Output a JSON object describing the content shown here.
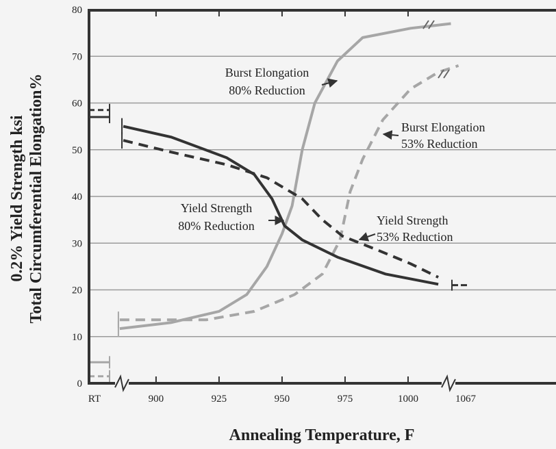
{
  "chart_data": {
    "type": "line",
    "xlabel": "Annealing Temperature, F",
    "ylabel_lines": [
      "0.2% Yield Strength ksi",
      "Total Circumferential Elongation%"
    ],
    "xlim": [
      873.4,
      1058.7
    ],
    "xticks": [
      900,
      925,
      950,
      975,
      1000
    ],
    "x_end_labels": [
      "RT",
      "1067"
    ],
    "ylim": [
      0,
      80
    ],
    "yticks": [
      0,
      10,
      20,
      30,
      40,
      50,
      60,
      70,
      80
    ],
    "grid": true,
    "series": [
      {
        "label_lines": [
          "Burst Elongation",
          "80% Reduction"
        ],
        "color": "#a6a6a6",
        "dash": false,
        "x": [
          885.6,
          906,
          925,
          936,
          944,
          950,
          954,
          958,
          963,
          972,
          982,
          1001,
          1017
        ],
        "values": [
          11.7,
          13,
          15.4,
          19,
          25,
          32,
          38,
          50,
          60,
          69,
          74,
          76,
          77
        ],
        "rt_value": 4.5
      },
      {
        "label_lines": [
          "Burst Elongation",
          "53% Reduction"
        ],
        "color": "#a6a6a6",
        "dash": true,
        "x": [
          885.6,
          920,
          939,
          955,
          966,
          973,
          977,
          982,
          990,
          1001,
          1012,
          1020
        ],
        "values": [
          13.6,
          13.6,
          15.4,
          19,
          23.4,
          30.7,
          41,
          48,
          56.4,
          63,
          66.6,
          68
        ],
        "rt_value": 1.5
      },
      {
        "label_lines": [
          "Yield Strength",
          "80% Reduction"
        ],
        "color": "#333333",
        "dash": false,
        "x": [
          887,
          906,
          928,
          939,
          946,
          951,
          958,
          972,
          991,
          1012
        ],
        "values": [
          55,
          52.7,
          48.3,
          44.7,
          39.5,
          33.7,
          30.7,
          27,
          23.4,
          21.2
        ],
        "rt_value": 57
      },
      {
        "label_lines": [
          "Yield Strength",
          "53% Reduction"
        ],
        "color": "#333333",
        "dash": true,
        "x": [
          887,
          906,
          928,
          944,
          958,
          966,
          974,
          988,
          1001,
          1012
        ],
        "values": [
          52,
          49.5,
          46.8,
          44,
          39.5,
          35,
          31.5,
          28.5,
          25.6,
          22.7
        ],
        "rt_value": 58.5,
        "end_value": 21
      }
    ]
  }
}
